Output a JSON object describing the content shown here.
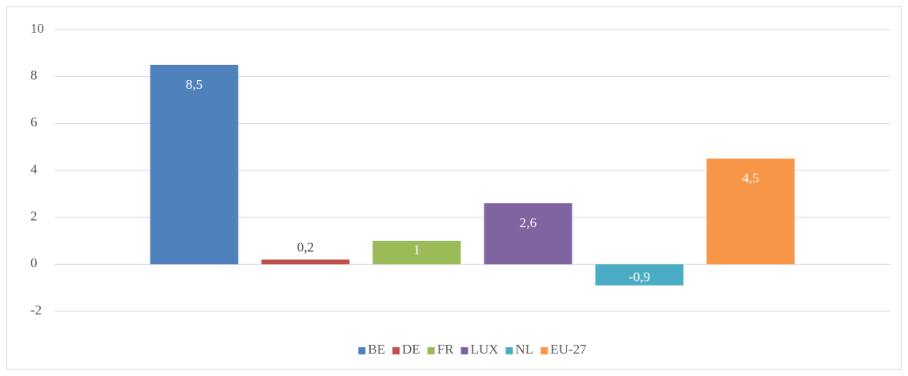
{
  "chart_data": {
    "type": "bar",
    "categories": [
      null
    ],
    "series": [
      {
        "name": "BE",
        "color": "#4f81bd",
        "values": [
          8.5
        ],
        "value_labels": [
          "8,5"
        ]
      },
      {
        "name": "DE",
        "color": "#c0504d",
        "values": [
          0.2
        ],
        "value_labels": [
          "0,2"
        ]
      },
      {
        "name": "FR",
        "color": "#9bbb59",
        "values": [
          1
        ],
        "value_labels": [
          "1"
        ]
      },
      {
        "name": "LUX",
        "color": "#8064a2",
        "values": [
          2.6
        ],
        "value_labels": [
          "2,6"
        ]
      },
      {
        "name": "NL",
        "color": "#4bacc6",
        "values": [
          -0.9
        ],
        "value_labels": [
          "-0,9"
        ]
      },
      {
        "name": "EU-27",
        "color": "#f79646",
        "values": [
          4.5
        ],
        "value_labels": [
          "4,5"
        ]
      }
    ],
    "ylim": [
      -2,
      10
    ],
    "yticks": [
      -2,
      0,
      2,
      4,
      6,
      8,
      10
    ],
    "grid": true,
    "legend": "bottom"
  }
}
